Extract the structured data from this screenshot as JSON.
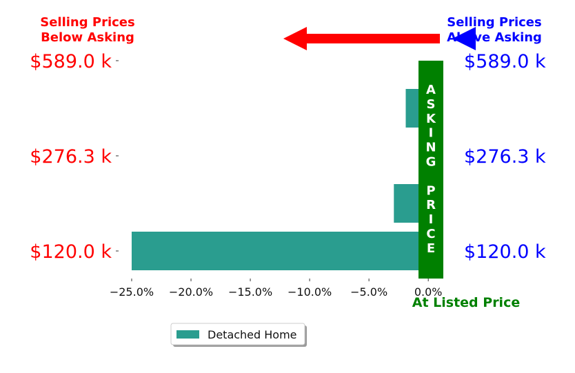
{
  "chart_data": {
    "type": "bar",
    "orientation": "horizontal",
    "categories": [
      "$120.0 k",
      "",
      "$276.3 k",
      "",
      "$589.0 k"
    ],
    "right_tick_labels": [
      "$120.0 k",
      "",
      "$276.3 k",
      "",
      "$589.0 k"
    ],
    "series": [
      {
        "name": "Detached Home",
        "color": "#2a9d8f",
        "values": [
          -25.0,
          -2.9,
          1.1,
          -1.9,
          0
        ]
      }
    ],
    "xlim": [
      -26.8,
      1.5
    ],
    "x_ticks": [
      -25,
      -20,
      -15,
      -10,
      -5,
      0
    ],
    "x_tick_labels": [
      "−25.0%",
      "−20.0%",
      "−15.0%",
      "−10.0%",
      "−5.0%",
      "0.0%"
    ],
    "annotations": {
      "left_header": [
        "Selling Prices",
        "Below Asking"
      ],
      "right_header": [
        "Selling Prices",
        "Above Asking"
      ],
      "asking_band_letters": [
        "A",
        "S",
        "K",
        "I",
        "N",
        "G",
        "",
        "P",
        "R",
        "I",
        "C",
        "E"
      ],
      "at_listed": "At Listed Price"
    },
    "colors": {
      "left": "#ff0000",
      "right": "#0000ff",
      "asking": "#008000",
      "bar": "#2a9d8f"
    },
    "legend": {
      "placement": "bottom-left",
      "label": "Detached Home"
    },
    "grid": false
  }
}
